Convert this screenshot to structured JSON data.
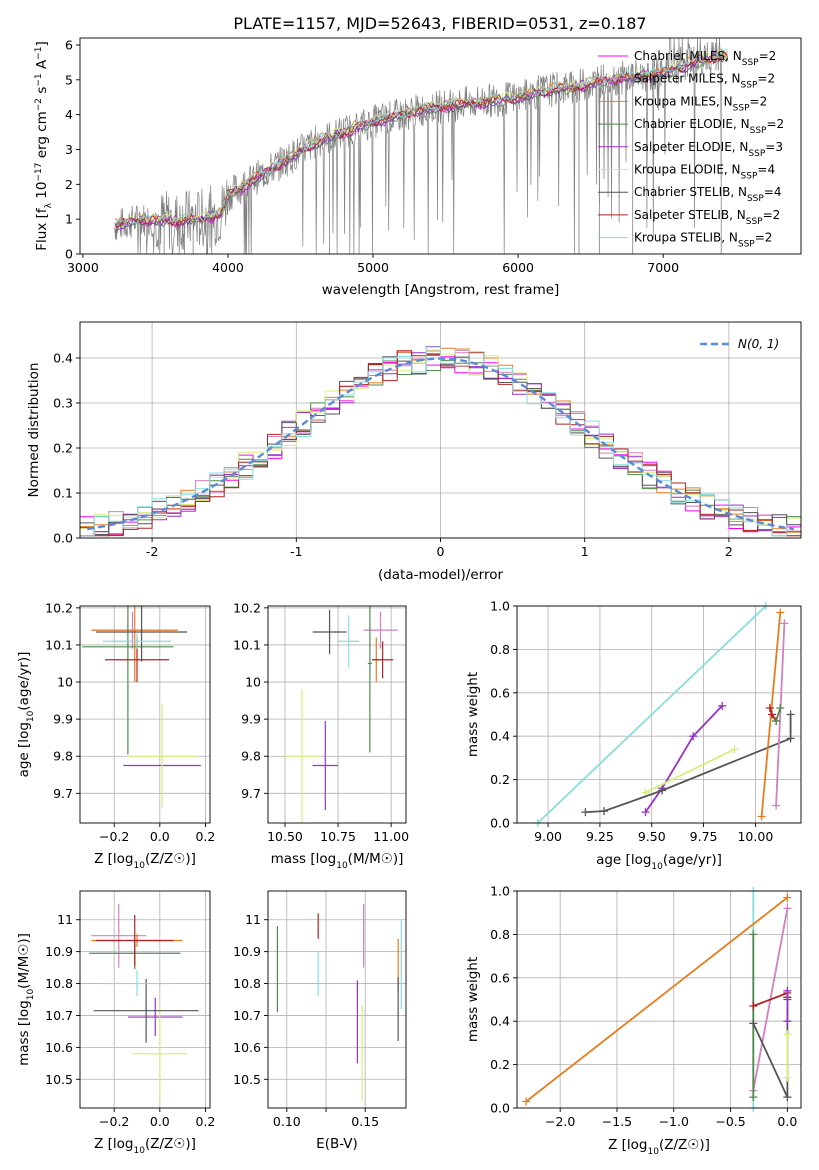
{
  "figure": {
    "title": "PLATE=1157, MJD=52643, FIBERID=0531, z=0.187"
  },
  "colors": {
    "data": "#808080",
    "Chabrier MILES": "#ff00ff",
    "Salpeter MILES": "#d47fbf",
    "Kroupa MILES": "#e87d1e",
    "Chabrier ELODIE": "#4f8a4f",
    "Salpeter ELODIE": "#9932cc",
    "Kroupa ELODIE": "#d4f07a",
    "Chabrier STELIB": "#555555",
    "Salpeter STELIB": "#b22222",
    "Kroupa STELIB": "#87dede"
  },
  "chart_data": [
    {
      "id": "spectrum",
      "type": "line",
      "xlabel": "wavelength [Angstrom, rest frame]",
      "ylabel": "Flux [f_λ 10^-17 erg cm^-2 s^-1 A^-1]",
      "xlim": [
        2980,
        7950
      ],
      "ylim": [
        0,
        6.2
      ],
      "xticks": [
        3000,
        4000,
        5000,
        6000,
        7000
      ],
      "yticks": [
        0,
        1,
        2,
        3,
        4,
        5,
        6
      ],
      "grid": false,
      "legend_position": "upper right",
      "legend": [
        {
          "label": "Chabrier MILES, N_SSP=2",
          "key": "Chabrier MILES"
        },
        {
          "label": "Salpeter MILES, N_SSP=2",
          "key": "Salpeter MILES"
        },
        {
          "label": "Kroupa MILES, N_SSP=2",
          "key": "Kroupa MILES"
        },
        {
          "label": "Chabrier ELODIE, N_SSP=2",
          "key": "Chabrier ELODIE"
        },
        {
          "label": "Salpeter ELODIE, N_SSP=3",
          "key": "Salpeter ELODIE"
        },
        {
          "label": "Kroupa ELODIE, N_SSP=4",
          "key": "Kroupa ELODIE"
        },
        {
          "label": "Chabrier STELIB, N_SSP=4",
          "key": "Chabrier STELIB"
        },
        {
          "label": "Salpeter STELIB, N_SSP=2",
          "key": "Salpeter STELIB"
        },
        {
          "label": "Kroupa STELIB, N_SSP=2",
          "key": "Kroupa STELIB"
        }
      ],
      "continuum": {
        "x": [
          3220,
          3400,
          3600,
          3800,
          3950,
          4000,
          4200,
          4400,
          4600,
          4800,
          5000,
          5200,
          5400,
          5600,
          5800,
          6000,
          6200,
          6400,
          6600,
          6800,
          7000,
          7200,
          7400
        ],
        "y": [
          0.8,
          1.0,
          0.95,
          1.0,
          1.15,
          1.7,
          2.2,
          2.7,
          3.2,
          3.5,
          3.8,
          4.0,
          4.2,
          4.3,
          4.4,
          4.5,
          4.7,
          4.8,
          5.0,
          5.1,
          5.2,
          5.5,
          5.7
        ]
      }
    },
    {
      "id": "residuals",
      "type": "histogram",
      "xlabel": "(data-model)/error",
      "ylabel": "Normed distribution",
      "xlim": [
        -2.5,
        2.5
      ],
      "ylim": [
        0,
        0.48
      ],
      "xticks": [
        -2,
        -1,
        0,
        1,
        2
      ],
      "yticks": [
        0.0,
        0.1,
        0.2,
        0.3,
        0.4
      ],
      "grid": true,
      "legend_position": "upper right",
      "legend": [
        {
          "label": "N(0, 1)"
        }
      ],
      "bin_width": 0.1
    },
    {
      "id": "age-vs-Z",
      "type": "scatter",
      "xlabel": "Z [log10(Z/Z☉)]",
      "ylabel": "age  [log10(age/yr)]",
      "xlim": [
        -0.35,
        0.22
      ],
      "ylim": [
        9.62,
        10.205
      ],
      "xticks": [
        -0.2,
        0.0,
        0.2
      ],
      "xtick_labels": [
        "−0.2",
        "0.0",
        "0.2"
      ],
      "yticks": [
        9.7,
        9.8,
        9.9,
        10.0,
        10.1,
        10.2
      ],
      "grid": true,
      "points": [
        {
          "series": "Salpeter MILES",
          "x": -0.12,
          "y": 10.14,
          "xerr": 0.18,
          "yerr": 0.05
        },
        {
          "series": "Kroupa MILES",
          "x": -0.11,
          "y": 10.14,
          "xerr": 0.19,
          "yerr": 0.14
        },
        {
          "series": "Chabrier ELODIE",
          "x": -0.14,
          "y": 10.095,
          "xerr": 0.2,
          "yerr": 0.29
        },
        {
          "series": "Salpeter ELODIE",
          "x": 0.01,
          "y": 9.775,
          "xerr": 0.17,
          "yerr": 0.0
        },
        {
          "series": "Kroupa ELODIE",
          "x": 0.01,
          "y": 9.8,
          "xerr": 0.15,
          "yerr": 0.14
        },
        {
          "series": "Chabrier STELIB",
          "x": -0.08,
          "y": 10.135,
          "xerr": 0.2,
          "yerr": 0.08
        },
        {
          "series": "Salpeter STELIB",
          "x": -0.1,
          "y": 10.06,
          "xerr": 0.14,
          "yerr": 0.06
        },
        {
          "series": "Kroupa STELIB",
          "x": -0.1,
          "y": 10.11,
          "xerr": 0.15,
          "yerr": 0.02
        }
      ]
    },
    {
      "id": "age-vs-mass",
      "type": "scatter",
      "xlabel": "mass [log10(M/M☉)]",
      "ylabel": "",
      "xlim": [
        10.42,
        11.07
      ],
      "ylim": [
        9.62,
        10.205
      ],
      "xticks": [
        10.5,
        10.75,
        11.0
      ],
      "xtick_labels": [
        "10.50",
        "10.75",
        "11.00"
      ],
      "yticks": [
        9.7,
        9.8,
        9.9,
        10.0,
        10.1,
        10.2
      ],
      "grid": true,
      "points": [
        {
          "series": "Salpeter MILES",
          "x": 10.95,
          "y": 10.14,
          "xerr": 0.08,
          "yerr": 0.05
        },
        {
          "series": "Kroupa MILES",
          "x": 10.93,
          "y": 10.06,
          "xerr": 0.02,
          "yerr": 0.06
        },
        {
          "series": "Chabrier ELODIE",
          "x": 10.9,
          "y": 10.05,
          "xerr": 0.01,
          "yerr": 0.24
        },
        {
          "series": "Salpeter ELODIE",
          "x": 10.69,
          "y": 9.775,
          "xerr": 0.06,
          "yerr": 0.12
        },
        {
          "series": "Kroupa ELODIE",
          "x": 10.58,
          "y": 9.8,
          "xerr": 0.08,
          "yerr": 0.18
        },
        {
          "series": "Chabrier STELIB",
          "x": 10.71,
          "y": 10.135,
          "xerr": 0.08,
          "yerr": 0.06
        },
        {
          "series": "Salpeter STELIB",
          "x": 10.96,
          "y": 10.06,
          "xerr": 0.05,
          "yerr": 0.05
        },
        {
          "series": "Kroupa STELIB",
          "x": 10.8,
          "y": 10.11,
          "xerr": 0.05,
          "yerr": 0.07
        }
      ]
    },
    {
      "id": "weight-vs-age",
      "type": "line",
      "xlabel": "age  [log10(age/yr)]",
      "ylabel": "mass weight",
      "xlim": [
        8.85,
        10.22
      ],
      "ylim": [
        0,
        1
      ],
      "xticks": [
        9.0,
        9.25,
        9.5,
        9.75,
        10.0
      ],
      "xtick_labels": [
        "9.00",
        "9.25",
        "9.50",
        "9.75",
        "10.00"
      ],
      "yticks": [
        0,
        0.2,
        0.4,
        0.6,
        0.8,
        1.0
      ],
      "grid": true,
      "series": [
        {
          "name": "Kroupa STELIB",
          "x": [
            8.95,
            10.05
          ],
          "y": [
            0.0,
            1.0
          ]
        },
        {
          "name": "Salpeter ELODIE",
          "x": [
            9.47,
            9.55,
            9.7,
            9.84
          ],
          "y": [
            0.05,
            0.16,
            0.4,
            0.54
          ]
        },
        {
          "name": "Kroupa ELODIE",
          "x": [
            9.47,
            9.9
          ],
          "y": [
            0.14,
            0.34
          ]
        },
        {
          "name": "Chabrier STELIB",
          "x": [
            9.18,
            9.27,
            9.55,
            10.17,
            10.17
          ],
          "y": [
            0.05,
            0.055,
            0.15,
            0.39,
            0.5
          ]
        },
        {
          "name": "Kroupa MILES",
          "x": [
            10.03,
            10.12
          ],
          "y": [
            0.03,
            0.97
          ]
        },
        {
          "name": "Salpeter MILES",
          "x": [
            10.1,
            10.14
          ],
          "y": [
            0.08,
            0.92
          ]
        },
        {
          "name": "Salpeter STELIB",
          "x": [
            10.07,
            10.08,
            10.1
          ],
          "y": [
            0.53,
            0.5,
            0.47
          ]
        },
        {
          "name": "Chabrier ELODIE",
          "x": [
            10.1,
            10.12
          ],
          "y": [
            0.47,
            0.53
          ]
        }
      ]
    },
    {
      "id": "mass-vs-Z",
      "type": "scatter",
      "xlabel": "Z [log10(Z/Z☉)]",
      "ylabel": "mass [log10(M/M☉)]",
      "xlim": [
        -0.35,
        0.22
      ],
      "ylim": [
        10.41,
        11.09
      ],
      "xticks": [
        -0.2,
        0.0,
        0.2
      ],
      "xtick_labels": [
        "−0.2",
        "0.0",
        "0.2"
      ],
      "yticks": [
        10.5,
        10.6,
        10.7,
        10.8,
        10.9,
        11.0
      ],
      "grid": true,
      "points": [
        {
          "series": "Salpeter MILES",
          "x": -0.18,
          "y": 10.95,
          "xerr": 0.12,
          "yerr": 0.1
        },
        {
          "series": "Kroupa MILES",
          "x": -0.1,
          "y": 10.935,
          "xerr": 0.2,
          "yerr": 0.02
        },
        {
          "series": "Chabrier ELODIE",
          "x": -0.11,
          "y": 10.895,
          "xerr": 0.2,
          "yerr": 0.05
        },
        {
          "series": "Salpeter ELODIE",
          "x": -0.02,
          "y": 10.695,
          "xerr": 0.12,
          "yerr": 0.06
        },
        {
          "series": "Kroupa ELODIE",
          "x": 0.0,
          "y": 10.58,
          "xerr": 0.12,
          "yerr": 0.15
        },
        {
          "series": "Chabrier STELIB",
          "x": -0.06,
          "y": 10.715,
          "xerr": 0.23,
          "yerr": 0.1
        },
        {
          "series": "Salpeter STELIB",
          "x": -0.11,
          "y": 10.935,
          "xerr": 0.17,
          "yerr": 0.08
        },
        {
          "series": "Kroupa STELIB",
          "x": -0.1,
          "y": 10.8,
          "xerr": 0.15,
          "yerr": 0.04
        }
      ]
    },
    {
      "id": "mass-vs-ebv",
      "type": "scatter",
      "xlabel": "E(B-V)",
      "ylabel": "",
      "xlim": [
        0.088,
        0.176
      ],
      "ylim": [
        10.41,
        11.09
      ],
      "xticks": [
        0.1,
        0.125,
        0.15
      ],
      "xtick_labels": [
        "0.10",
        "",
        "0.15"
      ],
      "yticks": [
        10.5,
        10.6,
        10.7,
        10.8,
        10.9,
        11.0
      ],
      "grid": true,
      "points": [
        {
          "series": "Chabrier ELODIE",
          "x": 0.094,
          "y": 10.845,
          "yerr": 0.135
        },
        {
          "series": "Salpeter STELIB",
          "x": 0.12,
          "y": 10.98,
          "yerr": 0.04
        },
        {
          "series": "Kroupa STELIB",
          "x": 0.12,
          "y": 10.83,
          "yerr": 0.07
        },
        {
          "series": "Salpeter MILES",
          "x": 0.149,
          "y": 10.95,
          "yerr": 0.1
        },
        {
          "series": "Salpeter ELODIE",
          "x": 0.145,
          "y": 10.68,
          "yerr": 0.13
        },
        {
          "series": "Kroupa ELODIE",
          "x": 0.148,
          "y": 10.58,
          "yerr": 0.15
        },
        {
          "series": "Kroupa MILES",
          "x": 0.171,
          "y": 10.86,
          "yerr": 0.08
        },
        {
          "series": "Chabrier STELIB",
          "x": 0.171,
          "y": 10.72,
          "yerr": 0.1
        },
        {
          "series": "Kroupa STELIB",
          "x": 0.173,
          "y": 10.86,
          "yerr": 0.14
        }
      ]
    },
    {
      "id": "weight-vs-Z",
      "type": "line",
      "xlabel": "Z [log10(Z/Z☉)]",
      "ylabel": "mass weight",
      "xlim": [
        -2.38,
        0.12
      ],
      "ylim": [
        0,
        1
      ],
      "xticks": [
        -2.0,
        -1.5,
        -1.0,
        -0.5,
        0.0
      ],
      "xtick_labels": [
        "−2.0",
        "−1.5",
        "−1.0",
        "−0.5",
        "0.0"
      ],
      "yticks": [
        0,
        0.2,
        0.4,
        0.6,
        0.8,
        1.0
      ],
      "grid": true,
      "series": [
        {
          "name": "Kroupa STELIB",
          "x": [
            -0.3,
            -0.3
          ],
          "y": [
            0.0,
            1.0
          ]
        },
        {
          "name": "Salpeter MILES",
          "x": [
            -0.3,
            0.0
          ],
          "y": [
            0.08,
            0.92
          ]
        },
        {
          "name": "Chabrier ELODIE",
          "x": [
            -0.3,
            -0.3
          ],
          "y": [
            0.05,
            0.8
          ]
        },
        {
          "name": "Chabrier STELIB",
          "x": [
            -0.3,
            0.0,
            0.0
          ],
          "y": [
            0.39,
            0.05,
            0.5
          ]
        },
        {
          "name": "Salpeter STELIB",
          "x": [
            -0.3,
            0.0,
            0.0
          ],
          "y": [
            0.47,
            0.53,
            0.51
          ]
        },
        {
          "name": "Salpeter ELODIE",
          "x": [
            0.0,
            0.0
          ],
          "y": [
            0.4,
            0.54
          ]
        },
        {
          "name": "Kroupa ELODIE",
          "x": [
            0.0,
            0.0
          ],
          "y": [
            0.14,
            0.34
          ]
        },
        {
          "name": "Kroupa MILES",
          "x": [
            -2.3,
            0.0
          ],
          "y": [
            0.03,
            0.97
          ]
        }
      ]
    }
  ]
}
